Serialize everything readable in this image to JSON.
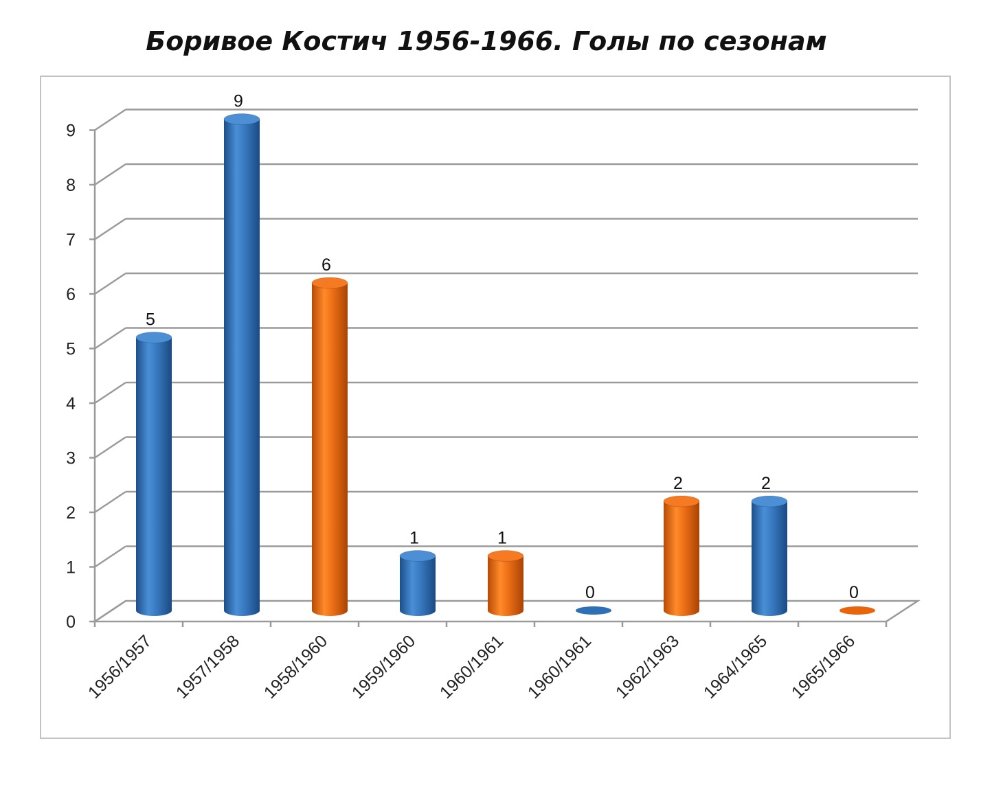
{
  "chart_data": {
    "type": "bar",
    "title": "Боривое Костич 1956-1966. Голы по сезонам",
    "xlabel": "",
    "ylabel": "",
    "ylim": [
      0,
      9
    ],
    "yticks": [
      0,
      1,
      2,
      3,
      4,
      5,
      6,
      7,
      8,
      9
    ],
    "grid": true,
    "style": "3d-cylinder",
    "categories": [
      "1956/1957",
      "1957/1958",
      "1958/1960",
      "1959/1960",
      "1960/1961",
      "1960/1961",
      "1962/1963",
      "1964/1965",
      "1965/1966"
    ],
    "values": [
      5,
      9,
      6,
      1,
      1,
      0,
      2,
      2,
      0
    ],
    "data_labels": [
      "5",
      "9",
      "6",
      "1",
      "1",
      "0",
      "2",
      "2",
      "0"
    ],
    "bar_colors": [
      "#2e6fb5",
      "#2e6fb5",
      "#e8650c",
      "#2e6fb5",
      "#e8650c",
      "#2e6fb5",
      "#e8650c",
      "#2e6fb5",
      "#e8650c"
    ]
  }
}
